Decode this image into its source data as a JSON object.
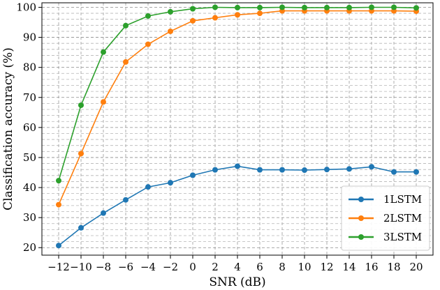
{
  "chart_data": {
    "type": "line",
    "xlabel": "SNR (dB)",
    "ylabel": "Classification accuracy (%)",
    "x": [
      -12,
      -10,
      -8,
      -6,
      -4,
      -2,
      0,
      2,
      4,
      6,
      8,
      10,
      12,
      14,
      16,
      18,
      20
    ],
    "x_tick_labels": [
      "−12",
      "−10",
      "−8",
      "−6",
      "−4",
      "−2",
      "0",
      "2",
      "4",
      "6",
      "8",
      "10",
      "12",
      "14",
      "16",
      "18",
      "20"
    ],
    "y_ticks": [
      20,
      30,
      40,
      50,
      60,
      70,
      80,
      90,
      100
    ],
    "y_tick_labels": [
      "20",
      "30",
      "40",
      "50",
      "60",
      "70",
      "80",
      "90",
      "100"
    ],
    "xlim": [
      -13.5,
      21.5
    ],
    "ylim": [
      17.5,
      101.5
    ],
    "grid": true,
    "legend_position": "bottom-right",
    "series": [
      {
        "name": "1LSTM",
        "color": "#1f77b4",
        "values": [
          20.7,
          26.6,
          31.5,
          35.9,
          40.2,
          41.6,
          44.1,
          45.9,
          47.1,
          45.9,
          45.9,
          45.8,
          46.0,
          46.2,
          46.9,
          45.2,
          45.2
        ]
      },
      {
        "name": "2LSTM",
        "color": "#ff7f0e",
        "values": [
          34.3,
          51.3,
          68.5,
          81.8,
          87.7,
          92.0,
          95.5,
          96.5,
          97.5,
          98.0,
          98.8,
          98.8,
          98.8,
          98.8,
          98.8,
          98.8,
          98.7
        ]
      },
      {
        "name": "3LSTM",
        "color": "#2ca02c",
        "values": [
          42.3,
          67.4,
          85.1,
          93.9,
          97.1,
          98.5,
          99.5,
          100.0,
          99.9,
          99.9,
          100.0,
          99.9,
          99.9,
          99.9,
          100.0,
          100.0,
          99.8
        ]
      }
    ]
  }
}
